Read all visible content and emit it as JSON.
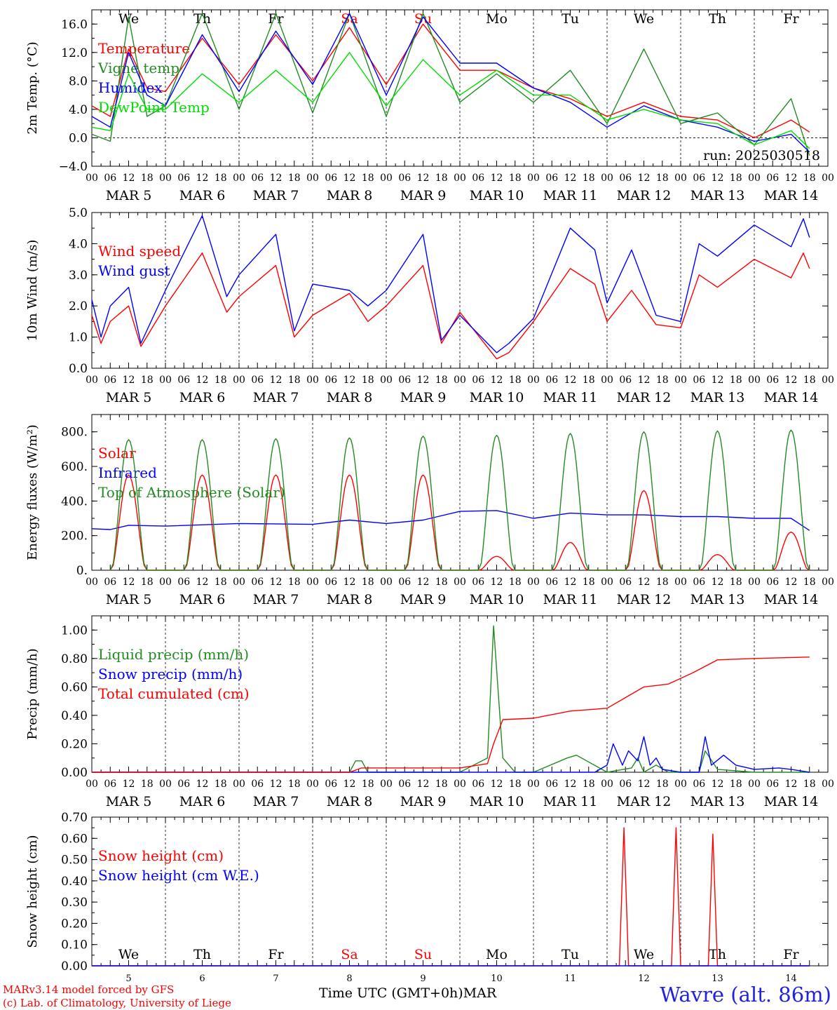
{
  "station": "Wavre (alt. 86m)",
  "credits": [
    "MARv3.14 model forced by GFS",
    "(c) Lab. of Climatology, University of Liege"
  ],
  "time_axis_label": "Time UTC (GMT+0h)",
  "month_label": "MAR",
  "run_label": "run: 2025030518",
  "hour_ticks": [
    "00",
    "06",
    "12",
    "18"
  ],
  "days": [
    {
      "num": "5",
      "date": "MAR  5",
      "dow": "We",
      "weekend": false
    },
    {
      "num": "6",
      "date": "MAR  6",
      "dow": "Th",
      "weekend": false
    },
    {
      "num": "7",
      "date": "MAR  7",
      "dow": "Fr",
      "weekend": false
    },
    {
      "num": "8",
      "date": "MAR  8",
      "dow": "Sa",
      "weekend": true
    },
    {
      "num": "9",
      "date": "MAR  9",
      "dow": "Su",
      "weekend": true
    },
    {
      "num": "10",
      "date": "MAR 10",
      "dow": "Mo",
      "weekend": false
    },
    {
      "num": "11",
      "date": "MAR 11",
      "dow": "Tu",
      "weekend": false
    },
    {
      "num": "12",
      "date": "MAR 12",
      "dow": "We",
      "weekend": false
    },
    {
      "num": "13",
      "date": "MAR 13",
      "dow": "Th",
      "weekend": false
    },
    {
      "num": "14",
      "date": "MAR 14",
      "dow": "Fr",
      "weekend": false
    }
  ],
  "colors": {
    "red": "#ff0000",
    "green": "#008000",
    "blue": "#0000ff",
    "lightgreen": "#00dd00",
    "weekend": "#ff0000"
  },
  "chart_data": [
    {
      "id": "temp",
      "type": "line",
      "ylabel": "2m Temp. (°C)",
      "ylim": [
        -4,
        18
      ],
      "yticks": [
        -4,
        0,
        4,
        8,
        12,
        16
      ],
      "ytick_labels": [
        "−4.0",
        "0.0",
        "4.0",
        "8.0",
        "12.0",
        "16.0"
      ],
      "zero_line": true,
      "show_dow": true,
      "series": [
        {
          "name": "Temperature",
          "color": "#ff0000",
          "hours": [
            0,
            6,
            12,
            18,
            24,
            36,
            48,
            60,
            72,
            84,
            96,
            108,
            120,
            132,
            144,
            156,
            168,
            180,
            192,
            204,
            216,
            228,
            234
          ],
          "values": [
            4.5,
            3.0,
            12.5,
            7.0,
            6.5,
            14.0,
            7.5,
            14.5,
            8.0,
            15.5,
            7.5,
            16.0,
            9.5,
            9.5,
            7.0,
            5.5,
            3.0,
            5.0,
            3.0,
            2.5,
            0.0,
            2.5,
            0.8
          ]
        },
        {
          "name": "Vigne temp",
          "color": "#228b22",
          "hours": [
            0,
            6,
            12,
            18,
            24,
            36,
            48,
            60,
            72,
            84,
            96,
            108,
            120,
            132,
            144,
            156,
            168,
            180,
            192,
            204,
            216,
            228,
            234
          ],
          "values": [
            0.5,
            -0.5,
            17.0,
            3.0,
            4.5,
            17.5,
            4.0,
            17.5,
            3.5,
            17.5,
            3.0,
            17.5,
            5.0,
            9.0,
            5.0,
            9.5,
            2.0,
            12.5,
            2.0,
            3.5,
            -1.0,
            5.5,
            -2.5
          ]
        },
        {
          "name": "Humidex",
          "color": "#0000ff",
          "hours": [
            0,
            6,
            12,
            18,
            24,
            36,
            48,
            60,
            72,
            84,
            96,
            108,
            120,
            132,
            144,
            156,
            168,
            180,
            192,
            204,
            216,
            228,
            234
          ],
          "values": [
            3.0,
            1.5,
            12.0,
            6.0,
            4.5,
            14.5,
            6.5,
            15.0,
            7.5,
            17.5,
            6.0,
            17.0,
            10.5,
            10.5,
            7.0,
            5.0,
            1.5,
            4.5,
            2.5,
            1.5,
            -0.5,
            0.5,
            -2.0
          ]
        },
        {
          "name": "DewPoint Temp",
          "color": "#00dd00",
          "hours": [
            0,
            6,
            12,
            18,
            24,
            36,
            48,
            60,
            72,
            84,
            96,
            108,
            120,
            132,
            144,
            156,
            168,
            180,
            192,
            204,
            216,
            228,
            234
          ],
          "values": [
            1.5,
            1.0,
            9.0,
            4.0,
            4.0,
            9.0,
            5.0,
            9.5,
            5.0,
            12.0,
            4.5,
            11.0,
            6.0,
            9.5,
            6.0,
            6.0,
            2.5,
            4.0,
            2.5,
            2.0,
            -1.0,
            1.0,
            -1.5
          ]
        }
      ]
    },
    {
      "id": "wind",
      "type": "line",
      "ylabel": "10m Wind (m/s)",
      "ylim": [
        0,
        5
      ],
      "yticks": [
        0,
        1,
        2,
        3,
        4,
        5
      ],
      "ytick_labels": [
        "0.0",
        "1.0",
        "2.0",
        "3.0",
        "4.0",
        "5.0"
      ],
      "series": [
        {
          "name": "Wind speed",
          "color": "#ff0000",
          "hours": [
            0,
            3,
            6,
            12,
            16,
            24,
            36,
            44,
            48,
            60,
            66,
            72,
            84,
            90,
            96,
            108,
            114,
            120,
            132,
            136,
            144,
            156,
            164,
            168,
            176,
            184,
            192,
            198,
            204,
            216,
            228,
            232,
            234
          ],
          "values": [
            1.7,
            0.8,
            1.5,
            2.0,
            0.7,
            2.0,
            3.7,
            1.8,
            2.3,
            3.3,
            1.0,
            1.7,
            2.4,
            1.5,
            2.0,
            3.3,
            0.8,
            1.8,
            0.3,
            0.5,
            1.5,
            3.2,
            2.7,
            1.5,
            2.5,
            1.4,
            1.3,
            3.0,
            2.6,
            3.5,
            2.9,
            3.7,
            3.2
          ]
        },
        {
          "name": "Wind gust",
          "color": "#0000ff",
          "hours": [
            0,
            3,
            6,
            12,
            16,
            24,
            36,
            44,
            48,
            60,
            66,
            72,
            84,
            90,
            96,
            108,
            114,
            120,
            132,
            136,
            144,
            156,
            164,
            168,
            176,
            184,
            192,
            198,
            204,
            216,
            228,
            232,
            234
          ],
          "values": [
            2.2,
            1.0,
            2.0,
            2.6,
            0.8,
            2.5,
            4.9,
            2.3,
            3.0,
            4.3,
            1.2,
            2.7,
            2.5,
            2.0,
            2.5,
            4.3,
            0.9,
            1.7,
            0.5,
            0.8,
            1.6,
            4.5,
            3.8,
            2.1,
            3.8,
            1.7,
            1.5,
            4.0,
            3.6,
            4.6,
            3.9,
            4.8,
            4.2
          ]
        }
      ]
    },
    {
      "id": "energy",
      "type": "line",
      "ylabel": "Energy fluxes (W/m²)",
      "ylim": [
        0,
        900
      ],
      "yticks": [
        0,
        200,
        400,
        600,
        800
      ],
      "ytick_labels": [
        "0.",
        "200.",
        "400.",
        "600.",
        "800."
      ],
      "series": [
        {
          "name": "Solar",
          "color": "#ff0000",
          "day_peaks": [
            550,
            550,
            550,
            550,
            550,
            80,
            160,
            460,
            90,
            220
          ]
        },
        {
          "name": "Infrared",
          "color": "#0000ff",
          "hours": [
            0,
            6,
            12,
            24,
            48,
            72,
            84,
            96,
            108,
            120,
            132,
            144,
            156,
            168,
            180,
            192,
            204,
            216,
            228,
            234
          ],
          "values": [
            240,
            235,
            260,
            255,
            270,
            265,
            290,
            270,
            290,
            340,
            345,
            300,
            330,
            320,
            320,
            310,
            310,
            300,
            300,
            230
          ]
        },
        {
          "name": "Top of Atmosphere (Solar)",
          "color": "#228b22",
          "day_peaks": [
            755,
            755,
            760,
            765,
            775,
            780,
            790,
            800,
            805,
            810
          ]
        }
      ]
    },
    {
      "id": "precip",
      "type": "line",
      "ylabel": "Precip (mm/h)",
      "ylim": [
        0,
        1.1
      ],
      "yticks": [
        0,
        0.2,
        0.4,
        0.6,
        0.8,
        1.0
      ],
      "ytick_labels": [
        "0.00",
        "0.20",
        "0.40",
        "0.60",
        "0.80",
        "1.00"
      ],
      "series": [
        {
          "name": "Liquid precip (mm/h)",
          "color": "#228b22",
          "hours": [
            0,
            84,
            86,
            88,
            90,
            120,
            129,
            131,
            134,
            138,
            144,
            155,
            158,
            168,
            176,
            178,
            180,
            184,
            188,
            198,
            200,
            204,
            216,
            234
          ],
          "values": [
            0,
            0,
            0.08,
            0.08,
            0,
            0,
            0.1,
            1.03,
            0.1,
            0,
            0,
            0.1,
            0.12,
            0,
            0.03,
            0.1,
            0,
            0.05,
            0,
            0,
            0.15,
            0.02,
            0,
            0
          ]
        },
        {
          "name": "Snow precip (mm/h)",
          "color": "#0000ff",
          "hours": [
            0,
            164,
            168,
            170,
            173,
            175,
            178,
            180,
            182,
            184,
            186,
            192,
            198,
            200,
            202,
            206,
            210,
            216,
            224,
            228,
            234
          ],
          "values": [
            0,
            0,
            0.05,
            0.2,
            0.05,
            0.15,
            0.08,
            0.25,
            0.05,
            0.1,
            0.02,
            0,
            0,
            0.25,
            0.05,
            0.12,
            0.05,
            0.02,
            0.03,
            0.02,
            0
          ]
        },
        {
          "name": "Total cumulated (cm)",
          "color": "#ff0000",
          "hours": [
            0,
            84,
            88,
            96,
            120,
            129,
            131,
            134,
            144,
            156,
            168,
            176,
            180,
            188,
            196,
            204,
            216,
            234
          ],
          "values": [
            0,
            0,
            0.03,
            0.03,
            0.03,
            0.06,
            0.2,
            0.37,
            0.38,
            0.43,
            0.45,
            0.55,
            0.6,
            0.62,
            0.7,
            0.79,
            0.8,
            0.81
          ]
        }
      ]
    },
    {
      "id": "snow",
      "type": "line",
      "ylabel": "Snow height (cm)",
      "ylim": [
        0,
        0.7
      ],
      "yticks": [
        0,
        0.1,
        0.2,
        0.3,
        0.4,
        0.5,
        0.6,
        0.7
      ],
      "ytick_labels": [
        "0.00",
        "0.10",
        "0.20",
        "0.30",
        "0.40",
        "0.50",
        "0.60",
        "0.70"
      ],
      "show_dow_inside": true,
      "show_day_numbers": true,
      "series": [
        {
          "name": "Snow height (cm)",
          "color": "#ff0000",
          "hours": [
            0,
            172,
            173.5,
            175,
            189,
            190.5,
            192,
            201,
            202.5,
            204,
            234
          ],
          "values": [
            0,
            0,
            0.65,
            0,
            0,
            0.65,
            0,
            0,
            0.62,
            0,
            0
          ]
        },
        {
          "name": "Snow height (cm W.E.)",
          "color": "#0000ff",
          "hours": [
            0,
            234
          ],
          "values": [
            0,
            0
          ]
        }
      ]
    }
  ]
}
